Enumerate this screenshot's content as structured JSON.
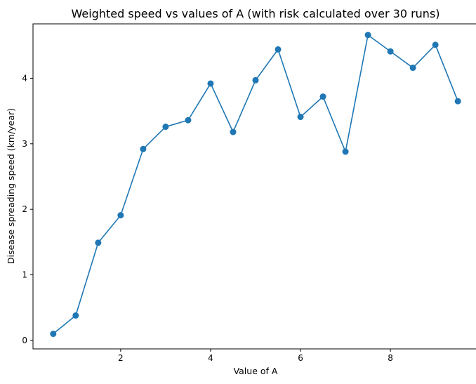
{
  "chart_data": {
    "type": "line",
    "title": "Weighted speed vs values of A (with risk calculated over 30 runs)",
    "xlabel": "Value of A",
    "ylabel": "Disease spreading speed (km/year)",
    "xlim": [
      0.05,
      9.95
    ],
    "ylim": [
      -0.13,
      4.83
    ],
    "xticks": [
      2,
      4,
      6,
      8
    ],
    "yticks": [
      0,
      1,
      2,
      3,
      4
    ],
    "grid": false,
    "legend": "none",
    "x": [
      0.5,
      1.0,
      1.5,
      2.0,
      2.5,
      3.0,
      3.5,
      4.0,
      4.5,
      5.0,
      5.5,
      6.0,
      6.5,
      7.0,
      7.5,
      8.0,
      8.5,
      9.0,
      9.5
    ],
    "series": [
      {
        "color": "#1f77b4",
        "marker": "circle",
        "values": [
          0.1,
          0.38,
          1.49,
          1.91,
          2.92,
          3.26,
          3.36,
          3.92,
          3.18,
          3.97,
          4.44,
          3.41,
          3.72,
          2.88,
          4.66,
          4.41,
          4.16,
          4.51,
          3.65
        ]
      }
    ]
  }
}
